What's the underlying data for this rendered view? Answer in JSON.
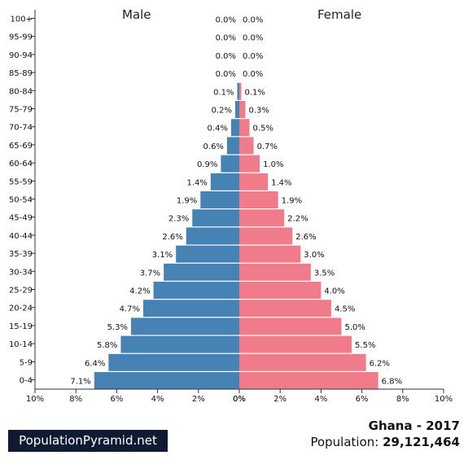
{
  "chart_data": {
    "type": "bar",
    "orientation": "horizontal-diverging",
    "left_title": "Male",
    "right_title": "Female",
    "categories": [
      "100+",
      "95-99",
      "90-94",
      "85-89",
      "80-84",
      "75-79",
      "70-74",
      "65-69",
      "60-64",
      "55-59",
      "50-54",
      "45-49",
      "40-44",
      "35-39",
      "30-34",
      "25-29",
      "20-24",
      "15-19",
      "10-14",
      "5-9",
      "0-4"
    ],
    "series": [
      {
        "name": "Male",
        "color": "#4682b4",
        "values": [
          0.0,
          0.0,
          0.0,
          0.0,
          0.1,
          0.2,
          0.4,
          0.6,
          0.9,
          1.4,
          1.9,
          2.3,
          2.6,
          3.1,
          3.7,
          4.2,
          4.7,
          5.3,
          5.8,
          6.4,
          7.1
        ],
        "labels": [
          "0.0%",
          "0.0%",
          "0.0%",
          "0.0%",
          "0.1%",
          "0.2%",
          "0.4%",
          "0.6%",
          "0.9%",
          "1.4%",
          "1.9%",
          "2.3%",
          "2.6%",
          "3.1%",
          "3.7%",
          "4.2%",
          "4.7%",
          "5.3%",
          "5.8%",
          "6.4%",
          "7.1%"
        ]
      },
      {
        "name": "Female",
        "color": "#f07b8a",
        "values": [
          0.0,
          0.0,
          0.0,
          0.0,
          0.1,
          0.3,
          0.5,
          0.7,
          1.0,
          1.4,
          1.9,
          2.2,
          2.6,
          3.0,
          3.5,
          4.0,
          4.5,
          5.0,
          5.5,
          6.2,
          6.8
        ],
        "labels": [
          "0.0%",
          "0.0%",
          "0.0%",
          "0.0%",
          "0.1%",
          "0.3%",
          "0.5%",
          "0.7%",
          "1.0%",
          "1.4%",
          "1.9%",
          "2.2%",
          "2.6%",
          "3.0%",
          "3.5%",
          "4.0%",
          "4.5%",
          "5.0%",
          "5.5%",
          "6.2%",
          "6.8%"
        ]
      }
    ],
    "xlim": [
      0,
      10
    ],
    "x_ticks_left": [
      "10%",
      "8%",
      "6%",
      "4%",
      "2%",
      "0%"
    ],
    "x_ticks_right": [
      "0%",
      "2%",
      "4%",
      "6%",
      "8%",
      "10%"
    ],
    "grid": false
  },
  "footer": {
    "brand": "PopulationPyramid.net",
    "title": "Ghana - 2017",
    "population_label": "Population: ",
    "population_value": "29,121,464"
  }
}
